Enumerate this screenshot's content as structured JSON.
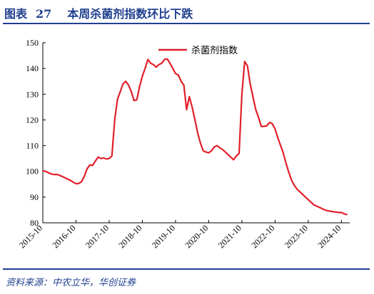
{
  "figure": {
    "label": "图表",
    "number": "27",
    "title": "本周杀菌剂指数环比下跌",
    "source": "资料来源：中农立华，华创证券"
  },
  "colors": {
    "accent": "#1f3f8f",
    "series": "#e0202a",
    "axis": "#000000"
  },
  "chart_data": {
    "type": "line",
    "xlabel": "",
    "ylabel": "",
    "ylim": [
      80,
      150
    ],
    "xlim": [
      "2015-10",
      "2025-01"
    ],
    "grid": false,
    "legend_position": "top-center",
    "yticks": [
      "80",
      "90",
      "100",
      "110",
      "120",
      "130",
      "140",
      "150"
    ],
    "xticks": [
      "2015-10",
      "2016-10",
      "2017-10",
      "2018-10",
      "2019-10",
      "2020-10",
      "2021-10",
      "2022-10",
      "2023-10",
      "2024-10"
    ],
    "series": [
      {
        "name": "杀菌剂指数",
        "x": [
          "2015-10",
          "2015-11",
          "2015-12",
          "2016-01",
          "2016-02",
          "2016-03",
          "2016-04",
          "2016-05",
          "2016-06",
          "2016-07",
          "2016-08",
          "2016-09",
          "2016-10",
          "2016-11",
          "2016-12",
          "2017-01",
          "2017-02",
          "2017-03",
          "2017-04",
          "2017-05",
          "2017-06",
          "2017-07",
          "2017-08",
          "2017-09",
          "2017-10",
          "2017-11",
          "2017-12",
          "2018-01",
          "2018-02",
          "2018-03",
          "2018-04",
          "2018-05",
          "2018-06",
          "2018-07",
          "2018-08",
          "2018-09",
          "2018-10",
          "2018-11",
          "2018-12",
          "2019-01",
          "2019-02",
          "2019-03",
          "2019-04",
          "2019-05",
          "2019-06",
          "2019-07",
          "2019-08",
          "2019-09",
          "2019-10",
          "2019-11",
          "2019-12",
          "2020-01",
          "2020-02",
          "2020-03",
          "2020-04",
          "2020-05",
          "2020-06",
          "2020-07",
          "2020-08",
          "2020-09",
          "2020-10",
          "2020-11",
          "2020-12",
          "2021-01",
          "2021-02",
          "2021-03",
          "2021-04",
          "2021-05",
          "2021-06",
          "2021-07",
          "2021-08",
          "2021-09",
          "2021-10",
          "2021-11",
          "2021-12",
          "2022-01",
          "2022-02",
          "2022-03",
          "2022-04",
          "2022-05",
          "2022-06",
          "2022-07",
          "2022-08",
          "2022-09",
          "2022-10",
          "2022-11",
          "2022-12",
          "2023-01",
          "2023-02",
          "2023-03",
          "2023-04",
          "2023-05",
          "2023-06",
          "2023-07",
          "2023-08",
          "2023-09",
          "2023-10",
          "2023-11",
          "2023-12",
          "2024-01",
          "2024-02",
          "2024-03",
          "2024-04",
          "2024-05",
          "2024-06",
          "2024-07",
          "2024-08",
          "2024-09",
          "2024-10",
          "2024-11",
          "2024-12"
        ],
        "values": [
          100.2,
          100,
          99.5,
          99,
          98.8,
          98.8,
          98.5,
          98,
          97.5,
          97,
          96.5,
          95.8,
          95.2,
          95.3,
          96,
          98,
          101,
          102.5,
          102.3,
          104,
          105.5,
          105,
          105.2,
          104.8,
          105,
          106,
          120,
          128,
          131,
          134,
          135,
          133.5,
          131,
          127.5,
          127.8,
          133,
          137,
          140,
          143.5,
          142,
          141.5,
          140.5,
          141.5,
          142,
          143.5,
          143.7,
          142,
          140,
          138,
          137.5,
          135,
          133.5,
          124,
          129,
          125,
          120,
          115,
          111,
          108,
          107.5,
          107.2,
          108,
          109.5,
          110,
          109.2,
          108.5,
          107.5,
          106.5,
          105.5,
          104.5,
          106,
          107,
          130,
          142.7,
          141,
          134,
          129,
          124,
          121,
          117.5,
          117.5,
          117.7,
          119,
          118.5,
          116.5,
          113,
          110,
          107,
          103,
          99.5,
          96.5,
          94.5,
          93,
          92,
          91,
          90,
          89,
          88,
          87,
          86.5,
          86,
          85.5,
          85,
          84.7,
          84.5,
          84.3,
          84.2,
          84,
          84,
          83.5,
          83.2
        ]
      }
    ]
  }
}
